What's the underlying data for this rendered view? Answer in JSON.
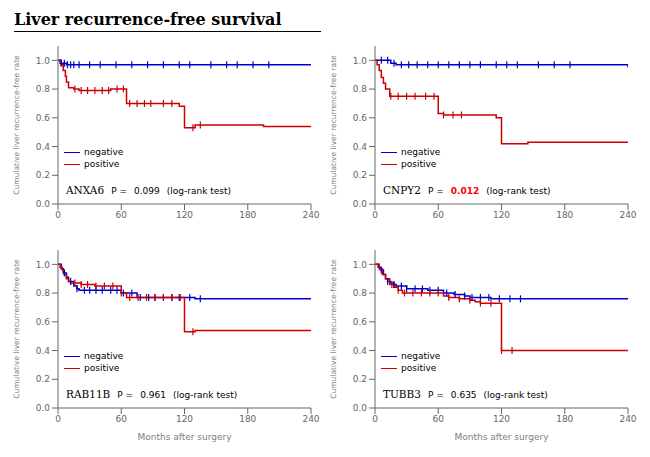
{
  "title": "Liver recurrence-free survival",
  "chart_data": [
    {
      "type": "line",
      "ylabel": "Cumulative liver recurrence-free  rate",
      "xlim": [
        0,
        240
      ],
      "xticks": [
        0,
        60,
        120,
        180,
        240
      ],
      "ylim": [
        0,
        1.1
      ],
      "yticks": [
        {
          "value": 0,
          "label": "0.0"
        },
        0.2,
        0.4,
        0.6,
        0.8,
        {
          "value": 1.0,
          "label": "1.0"
        }
      ],
      "legend": "lower left",
      "series": [
        {
          "name": "negative",
          "color": "#0000cc",
          "line_style": "step",
          "x": [
            0,
            2,
            5,
            8,
            10,
            240
          ],
          "values": [
            1.0,
            0.98,
            0.98,
            0.97,
            0.97,
            0.97
          ],
          "censor_x": [
            3,
            6,
            9,
            12,
            15,
            20,
            30,
            40,
            55,
            70,
            85,
            100,
            115,
            125,
            145,
            160,
            170,
            185,
            200
          ],
          "censor_values": [
            0.98,
            0.98,
            0.97,
            0.97,
            0.97,
            0.97,
            0.97,
            0.97,
            0.97,
            0.97,
            0.97,
            0.97,
            0.97,
            0.97,
            0.97,
            0.97,
            0.97,
            0.97,
            0.97
          ]
        },
        {
          "name": "positive",
          "color": "#cc0000",
          "line_style": "step",
          "x": [
            0,
            3,
            5,
            7,
            8,
            10,
            12,
            15,
            20,
            30,
            40,
            50,
            60,
            65,
            70,
            80,
            90,
            100,
            110,
            115,
            120,
            125,
            130,
            140,
            180,
            195,
            240
          ],
          "values": [
            1.0,
            0.97,
            0.93,
            0.89,
            0.85,
            0.81,
            0.81,
            0.8,
            0.79,
            0.79,
            0.79,
            0.8,
            0.8,
            0.7,
            0.7,
            0.7,
            0.7,
            0.7,
            0.7,
            0.68,
            0.53,
            0.53,
            0.55,
            0.55,
            0.55,
            0.54,
            0.54
          ],
          "censor_x": [
            16,
            22,
            28,
            35,
            42,
            48,
            56,
            62,
            68,
            75,
            82,
            88,
            100,
            108,
            128,
            135
          ],
          "censor_values": [
            0.8,
            0.79,
            0.79,
            0.79,
            0.79,
            0.79,
            0.8,
            0.8,
            0.7,
            0.7,
            0.7,
            0.7,
            0.7,
            0.7,
            0.53,
            0.55
          ]
        }
      ],
      "annotations": [
        {
          "text": "ANXA6"
        },
        {
          "text": "P ="
        },
        {
          "text": "0.099",
          "color": "black"
        },
        {
          "text": "(log-rank test)"
        }
      ]
    },
    {
      "type": "line",
      "ylabel": "Cumulative liver recurrence-free  rate",
      "xlim": [
        0,
        240
      ],
      "xticks": [
        0,
        60,
        120,
        180,
        240
      ],
      "ylim": [
        0,
        1.1
      ],
      "yticks": [
        {
          "value": 0,
          "label": "0.0"
        },
        0.2,
        0.4,
        0.6,
        0.8,
        {
          "value": 1.0,
          "label": "1.0"
        }
      ],
      "legend": "lower left",
      "series": [
        {
          "name": "negative",
          "color": "#0000cc",
          "line_style": "step",
          "x": [
            0,
            3,
            6,
            8,
            10,
            15,
            20,
            240
          ],
          "values": [
            1.0,
            1.0,
            1.0,
            1.0,
            1.0,
            0.98,
            0.97,
            0.95
          ],
          "censor_x": [
            6,
            12,
            18,
            25,
            32,
            40,
            50,
            60,
            70,
            80,
            90,
            100,
            115,
            125,
            135,
            155,
            170,
            185
          ],
          "censor_values": [
            1.0,
            1.0,
            0.98,
            0.97,
            0.97,
            0.97,
            0.97,
            0.97,
            0.97,
            0.97,
            0.97,
            0.97,
            0.97,
            0.97,
            0.97,
            0.97,
            0.97,
            0.97
          ]
        },
        {
          "name": "positive",
          "color": "#cc0000",
          "line_style": "step",
          "x": [
            0,
            2,
            4,
            6,
            8,
            10,
            12,
            14,
            18,
            30,
            40,
            55,
            60,
            65,
            70,
            80,
            90,
            100,
            110,
            115,
            120,
            130,
            145,
            190,
            240
          ],
          "values": [
            1.0,
            0.97,
            0.93,
            0.88,
            0.84,
            0.8,
            0.8,
            0.75,
            0.75,
            0.75,
            0.75,
            0.75,
            0.63,
            0.62,
            0.62,
            0.62,
            0.62,
            0.62,
            0.62,
            0.6,
            0.42,
            0.42,
            0.43,
            0.43,
            0.43
          ],
          "censor_x": [
            15,
            22,
            30,
            38,
            48,
            56,
            65,
            74,
            82
          ],
          "censor_values": [
            0.75,
            0.75,
            0.75,
            0.75,
            0.75,
            0.75,
            0.62,
            0.62,
            0.62
          ]
        }
      ],
      "annotations": [
        {
          "text": "CNPY2"
        },
        {
          "text": "P ="
        },
        {
          "text": "0.012",
          "color": "red"
        },
        {
          "text": "(log-rank test)"
        }
      ]
    },
    {
      "type": "line",
      "xlabel": "Months after surgery",
      "ylabel": "Cumulative liver recurrence-free  rate",
      "xlim": [
        0,
        240
      ],
      "xticks": [
        0,
        60,
        120,
        180,
        240
      ],
      "ylim": [
        0,
        1.1
      ],
      "yticks": [
        {
          "value": 0,
          "label": "0.0"
        },
        0.2,
        0.4,
        0.6,
        0.8,
        {
          "value": 1.0,
          "label": "1.0"
        }
      ],
      "legend": "lower left",
      "series": [
        {
          "name": "negative",
          "color": "#0000cc",
          "line_style": "step",
          "x": [
            0,
            3,
            5,
            8,
            10,
            15,
            18,
            20,
            40,
            55,
            58,
            60,
            70,
            75,
            90,
            100,
            115,
            120,
            130,
            190,
            240
          ],
          "values": [
            1.0,
            0.97,
            0.94,
            0.91,
            0.88,
            0.85,
            0.83,
            0.82,
            0.82,
            0.82,
            0.82,
            0.8,
            0.8,
            0.77,
            0.77,
            0.77,
            0.77,
            0.77,
            0.76,
            0.76,
            0.76
          ],
          "censor_x": [
            6,
            12,
            18,
            25,
            30,
            36,
            42,
            50,
            56,
            62,
            70,
            78,
            86,
            92,
            100,
            108,
            115,
            125,
            135
          ],
          "censor_values": [
            0.94,
            0.88,
            0.83,
            0.82,
            0.82,
            0.82,
            0.82,
            0.82,
            0.82,
            0.8,
            0.8,
            0.77,
            0.77,
            0.77,
            0.77,
            0.77,
            0.77,
            0.77,
            0.76
          ]
        },
        {
          "name": "positive",
          "color": "#cc0000",
          "line_style": "step",
          "x": [
            0,
            2,
            4,
            6,
            8,
            10,
            12,
            20,
            22,
            30,
            35,
            45,
            55,
            58,
            60,
            65,
            80,
            90,
            110,
            115,
            120,
            130,
            135,
            190,
            240
          ],
          "values": [
            1.0,
            0.98,
            0.96,
            0.93,
            0.9,
            0.88,
            0.87,
            0.87,
            0.86,
            0.86,
            0.85,
            0.85,
            0.85,
            0.85,
            0.8,
            0.77,
            0.77,
            0.77,
            0.77,
            0.77,
            0.53,
            0.54,
            0.54,
            0.54,
            0.54
          ],
          "censor_x": [
            16,
            22,
            28,
            36,
            44,
            52,
            60,
            68,
            76,
            84,
            92,
            100,
            108,
            116,
            128
          ],
          "censor_values": [
            0.87,
            0.86,
            0.86,
            0.85,
            0.85,
            0.85,
            0.8,
            0.77,
            0.77,
            0.77,
            0.77,
            0.77,
            0.77,
            0.77,
            0.53
          ]
        }
      ],
      "annotations": [
        {
          "text": "RAB11B"
        },
        {
          "text": "P ="
        },
        {
          "text": "0.961",
          "color": "black"
        },
        {
          "text": "(log-rank test)"
        }
      ]
    },
    {
      "type": "line",
      "xlabel": "Months after surgery",
      "ylabel": "Cumulative liver recurrence-free  rate",
      "xlim": [
        0,
        240
      ],
      "xticks": [
        0,
        60,
        120,
        180,
        240
      ],
      "ylim": [
        0,
        1.1
      ],
      "yticks": [
        {
          "value": 0,
          "label": "0.0"
        },
        0.2,
        0.4,
        0.6,
        0.8,
        {
          "value": 1.0,
          "label": "1.0"
        }
      ],
      "legend": "lower left",
      "series": [
        {
          "name": "negative",
          "color": "#0000cc",
          "line_style": "step",
          "x": [
            0,
            3,
            5,
            8,
            10,
            12,
            15,
            18,
            20,
            30,
            40,
            50,
            60,
            65,
            70,
            75,
            85,
            90,
            110,
            120,
            190,
            240
          ],
          "values": [
            1.0,
            0.98,
            0.96,
            0.93,
            0.9,
            0.88,
            0.87,
            0.86,
            0.85,
            0.83,
            0.83,
            0.82,
            0.82,
            0.8,
            0.8,
            0.79,
            0.78,
            0.77,
            0.76,
            0.76,
            0.76,
            0.76
          ],
          "censor_x": [
            6,
            12,
            18,
            25,
            30,
            38,
            45,
            52,
            60,
            68,
            76,
            85,
            92,
            100,
            108,
            118,
            128,
            138
          ],
          "censor_values": [
            0.96,
            0.88,
            0.86,
            0.85,
            0.83,
            0.83,
            0.83,
            0.82,
            0.82,
            0.8,
            0.79,
            0.78,
            0.77,
            0.77,
            0.77,
            0.76,
            0.76,
            0.76
          ]
        },
        {
          "name": "positive",
          "color": "#cc0000",
          "line_style": "step",
          "x": [
            0,
            4,
            7,
            10,
            14,
            18,
            22,
            26,
            35,
            50,
            60,
            65,
            70,
            80,
            90,
            95,
            100,
            110,
            115,
            120,
            130,
            190,
            240
          ],
          "values": [
            1.0,
            0.97,
            0.93,
            0.9,
            0.86,
            0.84,
            0.82,
            0.8,
            0.8,
            0.8,
            0.8,
            0.78,
            0.77,
            0.76,
            0.75,
            0.74,
            0.73,
            0.73,
            0.73,
            0.4,
            0.4,
            0.4,
            0.4
          ],
          "censor_x": [
            16,
            22,
            28,
            36,
            44,
            52,
            60,
            70,
            80,
            90,
            100,
            110,
            120,
            130
          ],
          "censor_values": [
            0.86,
            0.82,
            0.8,
            0.8,
            0.8,
            0.8,
            0.8,
            0.77,
            0.76,
            0.75,
            0.73,
            0.73,
            0.4,
            0.4
          ]
        }
      ],
      "annotations": [
        {
          "text": "TUBB3"
        },
        {
          "text": "P ="
        },
        {
          "text": "0.635",
          "color": "black"
        },
        {
          "text": "(log-rank test)"
        }
      ]
    }
  ]
}
